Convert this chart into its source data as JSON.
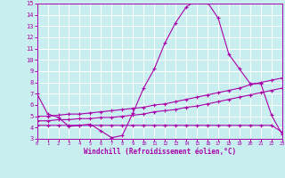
{
  "xlabel": "Windchill (Refroidissement éolien,°C)",
  "bg_color": "#c8eef0",
  "line_color": "#aa00aa",
  "grid_color": "#ffffff",
  "xmin": 0,
  "xmax": 23,
  "ymin": 3,
  "ymax": 15,
  "x_ticks": [
    0,
    1,
    2,
    3,
    4,
    5,
    6,
    7,
    8,
    9,
    10,
    11,
    12,
    13,
    14,
    15,
    16,
    17,
    18,
    19,
    20,
    21,
    22,
    23
  ],
  "y_ticks": [
    3,
    4,
    5,
    6,
    7,
    8,
    9,
    10,
    11,
    12,
    13,
    14,
    15
  ],
  "line1_x": [
    0,
    1,
    2,
    3,
    4,
    5,
    6,
    7,
    8,
    9,
    10,
    11,
    12,
    13,
    14,
    15,
    16,
    17,
    18,
    19,
    20,
    21,
    22,
    23
  ],
  "line1_y": [
    7.0,
    5.2,
    4.9,
    4.1,
    4.2,
    4.3,
    3.7,
    3.1,
    3.3,
    5.3,
    7.5,
    9.2,
    11.5,
    13.3,
    14.7,
    15.3,
    15.1,
    13.7,
    10.5,
    9.2,
    7.9,
    7.9,
    5.1,
    3.4
  ],
  "line2_x": [
    0,
    1,
    2,
    3,
    4,
    5,
    6,
    7,
    8,
    9,
    10,
    11,
    12,
    13,
    14,
    15,
    16,
    17,
    18,
    19,
    20,
    21,
    22,
    23
  ],
  "line2_y": [
    4.2,
    4.2,
    4.2,
    4.2,
    4.2,
    4.2,
    4.2,
    4.2,
    4.2,
    4.2,
    4.2,
    4.2,
    4.2,
    4.2,
    4.2,
    4.2,
    4.2,
    4.2,
    4.2,
    4.2,
    4.2,
    4.2,
    4.2,
    3.6
  ],
  "line3_x": [
    0,
    1,
    2,
    3,
    4,
    5,
    6,
    7,
    8,
    9,
    10,
    11,
    12,
    13,
    14,
    15,
    16,
    17,
    18,
    19,
    20,
    21,
    22,
    23
  ],
  "line3_y": [
    4.6,
    4.6,
    4.7,
    4.7,
    4.8,
    4.8,
    4.9,
    4.9,
    5.0,
    5.1,
    5.2,
    5.4,
    5.5,
    5.6,
    5.8,
    5.9,
    6.1,
    6.3,
    6.5,
    6.7,
    6.9,
    7.1,
    7.3,
    7.5
  ],
  "line4_x": [
    0,
    1,
    2,
    3,
    4,
    5,
    6,
    7,
    8,
    9,
    10,
    11,
    12,
    13,
    14,
    15,
    16,
    17,
    18,
    19,
    20,
    21,
    22,
    23
  ],
  "line4_y": [
    5.0,
    5.0,
    5.1,
    5.2,
    5.2,
    5.3,
    5.4,
    5.5,
    5.6,
    5.7,
    5.8,
    6.0,
    6.1,
    6.3,
    6.5,
    6.7,
    6.9,
    7.1,
    7.3,
    7.5,
    7.8,
    8.0,
    8.2,
    8.4
  ]
}
